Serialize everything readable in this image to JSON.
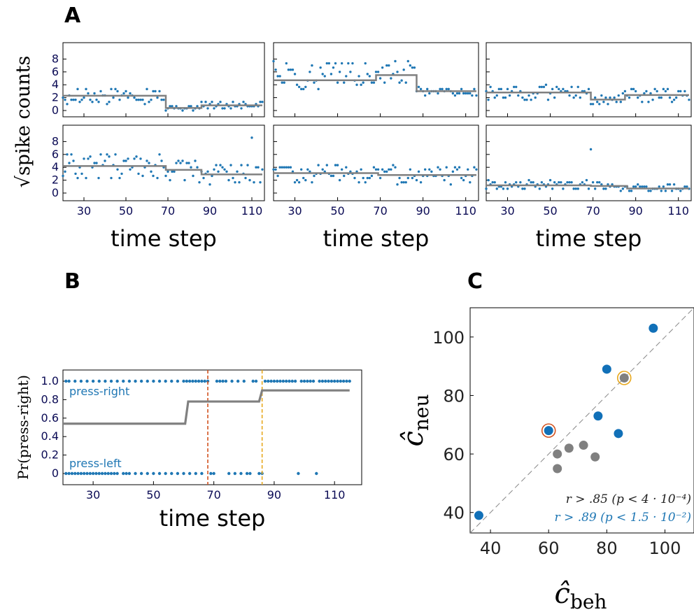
{
  "panels": {
    "a": "A",
    "b": "B",
    "c": "C"
  },
  "colors": {
    "blue": "#1f77b4",
    "blue_c": "#1170b8",
    "gray": "#808080",
    "red": "#d2521f",
    "orange": "#e8a91f"
  },
  "chart_data": [
    {
      "id": "A",
      "type": "scatter",
      "grid": "2x3",
      "xlabel": "time step",
      "ylabel": "√spike counts",
      "xlim": [
        20,
        116
      ],
      "ylim": [
        -1,
        10
      ],
      "xticks": [
        30,
        50,
        70,
        90,
        110
      ],
      "yticks": [
        0,
        2,
        4,
        6,
        8
      ],
      "subplots": [
        {
          "steps": [
            [
              20,
              2.3
            ],
            [
              69,
              0.4
            ],
            [
              86,
              0.8
            ],
            [
              115,
              0.8
            ]
          ],
          "base": [
            2.3,
            0.4,
            0.8
          ],
          "spread": [
            1.2,
            0.4,
            0.6
          ],
          "seed": 3
        },
        {
          "steps": [
            [
              20,
              4.7
            ],
            [
              68,
              5.5
            ],
            [
              87,
              3.0
            ],
            [
              115,
              3.0
            ]
          ],
          "base": [
            5.5,
            6.0,
            3.0
          ],
          "spread": [
            2.2,
            1.8,
            0.7
          ],
          "seed": 7
        },
        {
          "steps": [
            [
              20,
              2.8
            ],
            [
              69,
              1.7
            ],
            [
              85,
              2.4
            ],
            [
              115,
              2.4
            ]
          ],
          "base": [
            2.8,
            1.7,
            2.4
          ],
          "spread": [
            1.1,
            0.9,
            1.0
          ],
          "seed": 11
        },
        {
          "steps": [
            [
              20,
              4.2
            ],
            [
              69,
              3.6
            ],
            [
              86,
              2.9
            ],
            [
              115,
              2.9
            ]
          ],
          "base": [
            4.2,
            3.6,
            2.9
          ],
          "spread": [
            2.0,
            1.8,
            1.6
          ],
          "seed": 13
        },
        {
          "steps": [
            [
              20,
              3.1
            ],
            [
              69,
              2.8
            ],
            [
              86,
              2.8
            ],
            [
              115,
              2.8
            ]
          ],
          "base": [
            3.1,
            2.8,
            2.8
          ],
          "spread": [
            1.4,
            1.4,
            1.4
          ],
          "seed": 17
        },
        {
          "steps": [
            [
              20,
              1.2
            ],
            [
              69,
              1.1
            ],
            [
              86,
              0.7
            ],
            [
              115,
              0.7
            ]
          ],
          "base": [
            1.2,
            1.1,
            0.7
          ],
          "spread": [
            0.7,
            0.7,
            0.6
          ],
          "seed": 19
        }
      ]
    },
    {
      "id": "B",
      "type": "line",
      "xlabel": "time step",
      "ylabel": "Pr(press-right)",
      "xlim": [
        20,
        119
      ],
      "ylim": [
        -0.09,
        1.09
      ],
      "xticks": [
        30,
        50,
        70,
        90,
        110
      ],
      "yticks": [
        0,
        0.2,
        0.4,
        0.6,
        0.8,
        1.0
      ],
      "ytick_labels": [
        "0",
        "0.2",
        "0.4",
        "0.6",
        "0.8",
        "1.0"
      ],
      "label_right": "press-right",
      "label_left": "press-left",
      "steps": [
        [
          20,
          0.54
        ],
        [
          60.5,
          0.54
        ],
        [
          61.5,
          0.78
        ],
        [
          85,
          0.78
        ],
        [
          86,
          0.9
        ],
        [
          115,
          0.9
        ]
      ],
      "vlines": [
        {
          "x": 68,
          "color": "red"
        },
        {
          "x": 86,
          "color": "orange"
        }
      ],
      "left_press_x": [
        21,
        22,
        23,
        24,
        25,
        26,
        27,
        28,
        29,
        30,
        31,
        32,
        33,
        34,
        35,
        36,
        37,
        38,
        40,
        41,
        42,
        44,
        46,
        48,
        50,
        52,
        54,
        56,
        58,
        60,
        62,
        64,
        66,
        69,
        70,
        75,
        77,
        79,
        81,
        82,
        85,
        86,
        98,
        104
      ],
      "right_press_x": [
        21,
        22,
        24,
        26,
        28,
        30,
        32,
        34,
        36,
        38,
        40,
        42,
        44,
        46,
        48,
        50,
        52,
        54,
        56,
        58,
        60,
        61,
        62,
        63,
        64,
        65,
        66,
        67,
        68,
        71,
        72,
        73,
        74,
        76,
        78,
        80,
        83,
        84,
        87,
        88,
        89,
        90,
        91,
        92,
        93,
        94,
        95,
        96,
        97,
        99,
        100,
        101,
        102,
        103,
        105,
        106,
        107,
        108,
        109,
        110,
        111,
        112,
        113,
        114,
        115
      ]
    },
    {
      "id": "C",
      "type": "scatter",
      "xlabel": "ĉ_beh",
      "ylabel": "ĉ_neu",
      "xlim": [
        33,
        110
      ],
      "ylim": [
        33,
        110
      ],
      "xticks": [
        40,
        60,
        80,
        100
      ],
      "yticks": [
        40,
        60,
        80,
        100
      ],
      "series": [
        {
          "color": "blue",
          "points": [
            [
              36,
              39
            ],
            [
              60,
              68
            ],
            [
              77,
              73
            ],
            [
              80,
              89
            ],
            [
              84,
              67
            ],
            [
              96,
              103
            ]
          ]
        },
        {
          "color": "gray",
          "points": [
            [
              63,
              55
            ],
            [
              63,
              60
            ],
            [
              67,
              62
            ],
            [
              72,
              63
            ],
            [
              76,
              59
            ],
            [
              86,
              86
            ]
          ]
        }
      ],
      "highlight": [
        {
          "point": [
            60,
            68
          ],
          "color": "red"
        },
        {
          "point": [
            86,
            86
          ],
          "color": "orange"
        }
      ],
      "annotations": [
        {
          "text": "r > .85 (p < 4 · 10⁻⁴)",
          "color": "#222"
        },
        {
          "text": "r > .89 (p < 1.5 · 10⁻²)",
          "color": "blue"
        }
      ]
    }
  ]
}
